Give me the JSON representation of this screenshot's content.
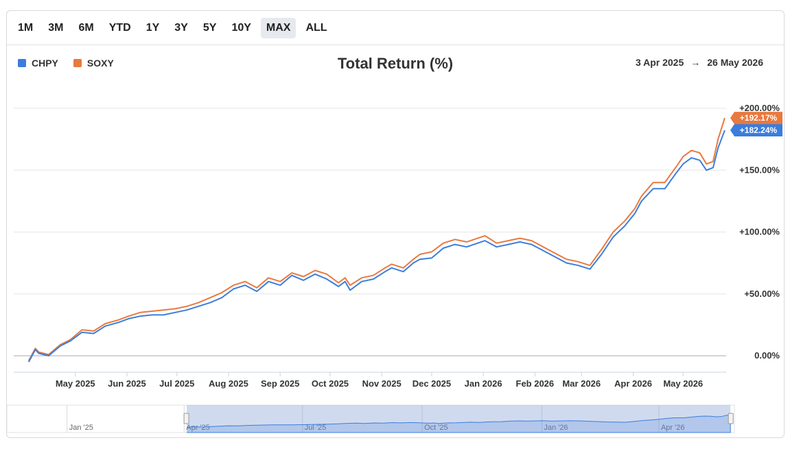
{
  "range_buttons": [
    "1M",
    "3M",
    "6M",
    "YTD",
    "1Y",
    "3Y",
    "5Y",
    "10Y",
    "MAX",
    "ALL"
  ],
  "active_range": "MAX",
  "legend": [
    {
      "name": "CHPY",
      "color": "#3b7ddd"
    },
    {
      "name": "SOXY",
      "color": "#e8793f"
    }
  ],
  "date_range": {
    "start": "3 Apr 2025",
    "arrow": "→",
    "end": "26 May 2026"
  },
  "chart_data": {
    "type": "line",
    "title": "Total Return (%)",
    "ylim": [
      0,
      200
    ],
    "y_ticks": [
      {
        "value": 0,
        "label": "0.00%"
      },
      {
        "value": 50,
        "label": "+50.00%"
      },
      {
        "value": 100,
        "label": "+100.00%"
      },
      {
        "value": 150,
        "label": "+150.00%"
      },
      {
        "value": 200,
        "label": "+200.00%"
      }
    ],
    "x_ticks": [
      "May 2025",
      "Jun 2025",
      "Jul 2025",
      "Aug 2025",
      "Sep 2025",
      "Oct 2025",
      "Nov 2025",
      "Dec 2025",
      "Jan 2026",
      "Feb 2026",
      "Mar 2026",
      "Apr 2026",
      "May 2026"
    ],
    "grid": true,
    "legend_position": "top-left",
    "x": [
      "2025-04-03",
      "2025-04-07",
      "2025-04-09",
      "2025-04-15",
      "2025-04-22",
      "2025-04-28",
      "2025-05-05",
      "2025-05-12",
      "2025-05-19",
      "2025-05-27",
      "2025-06-02",
      "2025-06-09",
      "2025-06-16",
      "2025-06-23",
      "2025-06-30",
      "2025-07-07",
      "2025-07-14",
      "2025-07-21",
      "2025-07-28",
      "2025-08-04",
      "2025-08-11",
      "2025-08-18",
      "2025-08-25",
      "2025-09-01",
      "2025-09-08",
      "2025-09-15",
      "2025-09-22",
      "2025-09-29",
      "2025-10-06",
      "2025-10-10",
      "2025-10-13",
      "2025-10-20",
      "2025-10-27",
      "2025-11-03",
      "2025-11-07",
      "2025-11-14",
      "2025-11-20",
      "2025-11-24",
      "2025-12-01",
      "2025-12-08",
      "2025-12-15",
      "2025-12-22",
      "2026-01-02",
      "2026-01-09",
      "2026-01-16",
      "2026-01-23",
      "2026-01-30",
      "2026-02-06",
      "2026-02-13",
      "2026-02-20",
      "2026-02-27",
      "2026-03-06",
      "2026-03-13",
      "2026-03-20",
      "2026-03-27",
      "2026-04-02",
      "2026-04-06",
      "2026-04-13",
      "2026-04-20",
      "2026-04-27",
      "2026-05-01",
      "2026-05-06",
      "2026-05-11",
      "2026-05-15",
      "2026-05-19",
      "2026-05-22",
      "2026-05-26"
    ],
    "series": [
      {
        "name": "CHPY",
        "color": "#3b7ddd",
        "end_label": "+182.24%",
        "values": [
          -5,
          5,
          2,
          0,
          8,
          12,
          19,
          18,
          24,
          27,
          30,
          32,
          33,
          33,
          35,
          37,
          40,
          43,
          47,
          54,
          57,
          52,
          60,
          57,
          65,
          61,
          66,
          62,
          56,
          60,
          53,
          60,
          62,
          68,
          71,
          68,
          75,
          78,
          79,
          87,
          90,
          88,
          93,
          88,
          90,
          92,
          90,
          85,
          80,
          75,
          73,
          70,
          82,
          96,
          105,
          115,
          125,
          135,
          135,
          148,
          155,
          160,
          158,
          150,
          152,
          168,
          182.24
        ]
      },
      {
        "name": "SOXY",
        "color": "#e8793f",
        "end_label": "+192.17%",
        "values": [
          -4,
          6,
          3,
          1,
          9,
          13,
          21,
          20,
          26,
          29,
          32,
          35,
          36,
          37,
          38,
          40,
          43,
          47,
          51,
          57,
          60,
          55,
          63,
          60,
          67,
          64,
          69,
          66,
          59,
          63,
          57,
          63,
          65,
          71,
          74,
          71,
          78,
          82,
          84,
          91,
          94,
          92,
          97,
          91,
          93,
          95,
          93,
          88,
          83,
          78,
          76,
          73,
          86,
          100,
          109,
          119,
          129,
          140,
          140,
          153,
          161,
          166,
          164,
          155,
          157,
          175,
          192.17
        ]
      }
    ]
  },
  "navigator": {
    "labels": [
      "Jan '25",
      "Apr '25",
      "Jul '25",
      "Oct '25",
      "Jan '26",
      "Apr '26"
    ]
  }
}
